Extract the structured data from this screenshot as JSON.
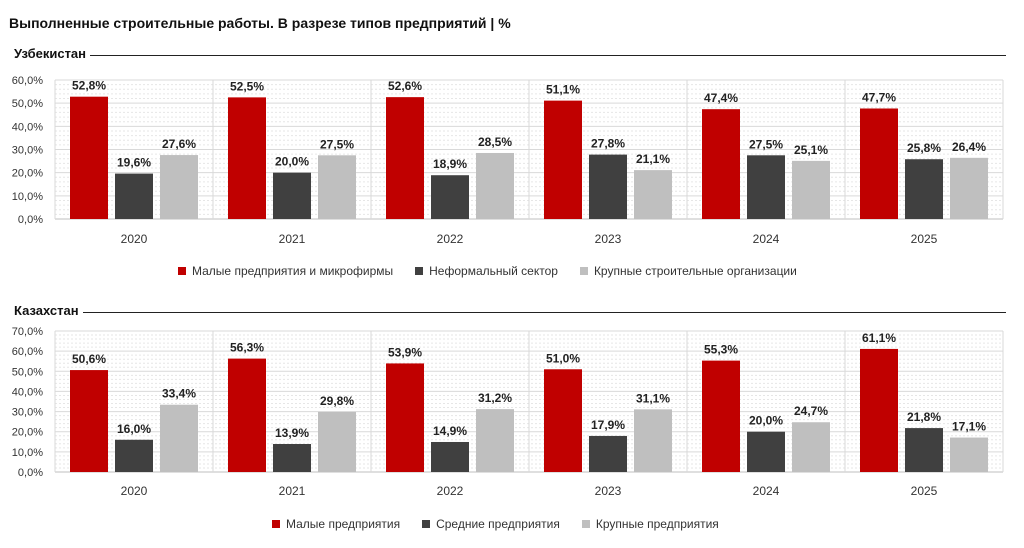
{
  "title": "Выполненные строительные работы. В разрезе типов предприятий | %",
  "colors": {
    "small": "#c00000",
    "mid": "#404040",
    "large": "#bfbfbf"
  },
  "sections": [
    {
      "label": "Узбекистан",
      "legend": [
        "Малые предприятия и микрофирмы",
        "Неформальный сектор",
        "Крупные строительные организации"
      ]
    },
    {
      "label": "Казахстан",
      "legend": [
        "Малые предприятия",
        "Средние предприятия",
        "Крупные предприятия"
      ]
    }
  ],
  "chart_data": [
    {
      "type": "bar",
      "title": "Узбекистан",
      "categories": [
        "2020",
        "2021",
        "2022",
        "2023",
        "2024",
        "2025"
      ],
      "ylim": [
        0,
        60
      ],
      "yticks": [
        "0,0%",
        "10,0%",
        "20,0%",
        "30,0%",
        "40,0%",
        "50,0%",
        "60,0%"
      ],
      "grid": true,
      "series": [
        {
          "name": "Малые предприятия и микрофирмы",
          "values": [
            52.8,
            52.5,
            52.6,
            51.1,
            47.4,
            47.7
          ],
          "labels": [
            "52,8%",
            "52,5%",
            "52,6%",
            "51,1%",
            "47,4%",
            "47,7%"
          ]
        },
        {
          "name": "Неформальный сектор",
          "values": [
            19.6,
            20.0,
            18.9,
            27.8,
            27.5,
            25.8
          ],
          "labels": [
            "19,6%",
            "20,0%",
            "18,9%",
            "27,8%",
            "27,5%",
            "25,8%"
          ]
        },
        {
          "name": "Крупные строительные организации",
          "values": [
            27.6,
            27.5,
            28.5,
            21.1,
            25.1,
            26.4
          ],
          "labels": [
            "27,6%",
            "27,5%",
            "28,5%",
            "21,1%",
            "25,1%",
            "26,4%"
          ]
        }
      ]
    },
    {
      "type": "bar",
      "title": "Казахстан",
      "categories": [
        "2020",
        "2021",
        "2022",
        "2023",
        "2024",
        "2025"
      ],
      "ylim": [
        0,
        70
      ],
      "yticks": [
        "0,0%",
        "10,0%",
        "20,0%",
        "30,0%",
        "40,0%",
        "50,0%",
        "60,0%",
        "70,0%"
      ],
      "grid": true,
      "series": [
        {
          "name": "Малые предприятия",
          "values": [
            50.6,
            56.3,
            53.9,
            51.0,
            55.3,
            61.1
          ],
          "labels": [
            "50,6%",
            "56,3%",
            "53,9%",
            "51,0%",
            "55,3%",
            "61,1%"
          ]
        },
        {
          "name": "Средние предприятия",
          "values": [
            16.0,
            13.9,
            14.9,
            17.9,
            20.0,
            21.8
          ],
          "labels": [
            "16,0%",
            "13,9%",
            "14,9%",
            "17,9%",
            "20,0%",
            "21,8%"
          ]
        },
        {
          "name": "Крупные предприятия",
          "values": [
            33.4,
            29.8,
            31.2,
            31.1,
            24.7,
            17.1
          ],
          "labels": [
            "33,4%",
            "29,8%",
            "31,2%",
            "31,1%",
            "24,7%",
            "17,1%"
          ]
        }
      ]
    }
  ]
}
